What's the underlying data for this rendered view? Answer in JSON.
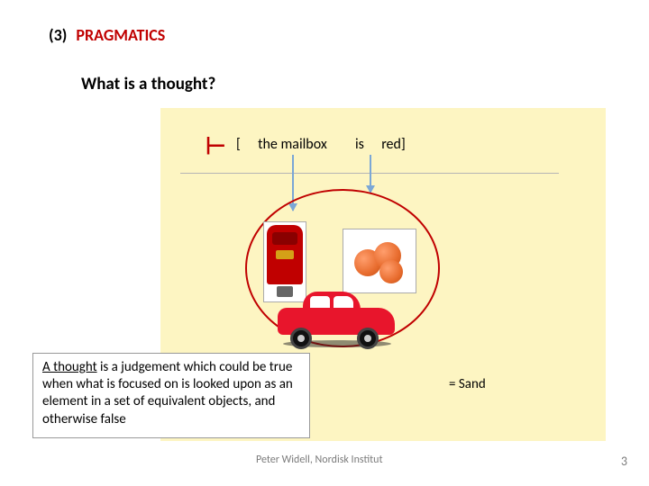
{
  "heading": {
    "number": "(3)",
    "title": "PRAGMATICS"
  },
  "subheading": "What is a thought?",
  "assertion": {
    "turnstile": "⊢",
    "open_bracket": "[",
    "subject": "the mailbox",
    "copula": "is",
    "predicate": "red]"
  },
  "diagram": {
    "background_color": "#fdf5c2",
    "circle_border_color": "#c00000",
    "underline_color": "#b5b5b5",
    "arrow_color": "#7ba7d6",
    "objects": {
      "mailbox": {
        "body_color": "#c00000",
        "slot_color": "#8a0000",
        "plate_color": "#d4a017",
        "leg_color": "#666666",
        "frame_bg": "#ffffff"
      },
      "cherries": {
        "colors": [
          "#ff9e6d",
          "#e86c2e",
          "#c24f13"
        ],
        "frame_bg": "#ffffff"
      },
      "car": {
        "body_color": "#e8152c",
        "window_color": "#ffffff",
        "wheel_color": "#111111",
        "hub_color": "#cccccc"
      }
    },
    "set_label": "=  Sand"
  },
  "definition": {
    "lead": "A thought",
    "rest": " is a judgement which could be true when what is focused on is looked upon as an element in a set of equivalent objects, and otherwise false"
  },
  "footer": {
    "author": "Peter Widell, Nordisk Institut",
    "page": "3"
  },
  "styling": {
    "brand_red": "#c00000",
    "text_color": "#000000",
    "muted": "#7b7b7b",
    "heading_fontsize_pt": 14,
    "subheading_fontsize_pt": 14,
    "body_fontsize_pt": 11,
    "footer_fontsize_pt": 9
  }
}
